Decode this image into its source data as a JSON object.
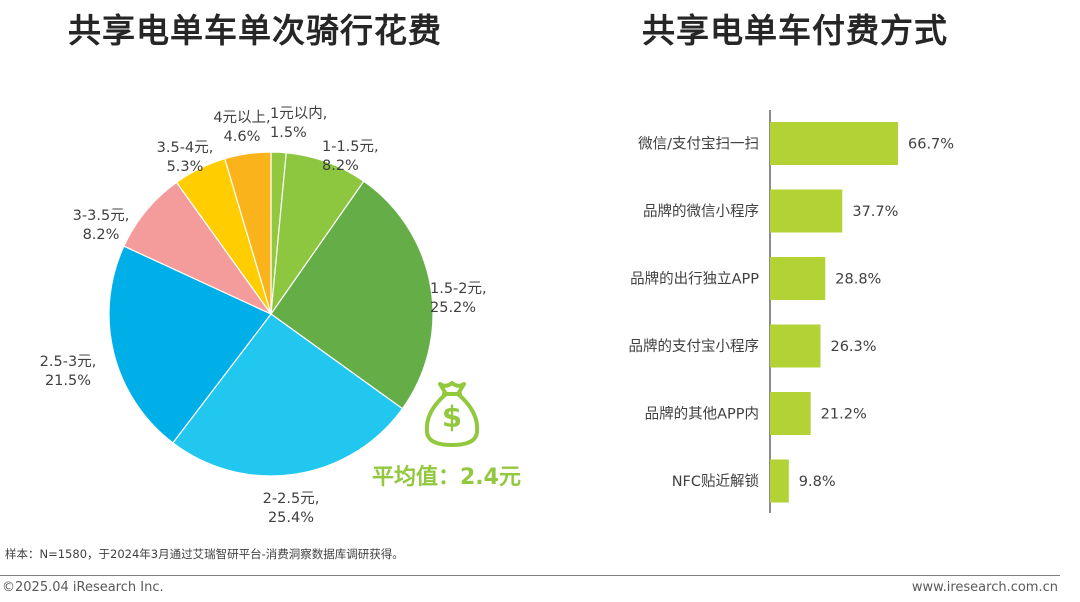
{
  "chart_data": [
    {
      "type": "pie",
      "title": "共享电单车单次骑行花费",
      "slices": [
        {
          "label": "1元以内",
          "value": 1.5,
          "display": "1.5%",
          "color": "#92c83e"
        },
        {
          "label": "1-1.5元",
          "value": 8.2,
          "display": "8.2%",
          "color": "#8dc63f"
        },
        {
          "label": "1.5-2元",
          "value": 25.2,
          "display": "25.2%",
          "color": "#65ae47"
        },
        {
          "label": "2-2.5元",
          "value": 25.4,
          "display": "25.4%",
          "color": "#22c7f0"
        },
        {
          "label": "2.5-3元",
          "value": 21.5,
          "display": "21.5%",
          "color": "#00aee8"
        },
        {
          "label": "3-3.5元",
          "value": 8.2,
          "display": "8.2%",
          "color": "#f49b9b"
        },
        {
          "label": "3.5-4元",
          "value": 5.3,
          "display": "5.3%",
          "color": "#ffcd00"
        },
        {
          "label": "4元以上",
          "value": 4.6,
          "display": "4.6%",
          "color": "#fbb31b"
        }
      ],
      "annotation": "平均值：2.4元"
    },
    {
      "type": "bar",
      "orientation": "horizontal",
      "title": "共享电单车付费方式",
      "categories": [
        "微信/支付宝扫一扫",
        "品牌的微信小程序",
        "品牌的出行独立APP",
        "品牌的支付宝小程序",
        "品牌的其他APP内",
        "NFC贴近解锁"
      ],
      "values": [
        66.7,
        37.7,
        28.8,
        26.3,
        21.2,
        9.8
      ],
      "value_labels": [
        "66.7%",
        "37.7%",
        "28.8%",
        "26.3%",
        "21.2%",
        "9.8%"
      ],
      "color": "#b2d235",
      "xlim": [
        0,
        100
      ]
    }
  ],
  "footnote": "样本：N=1580，于2024年3月通过艾瑞智研平台-消费洞察数据库调研获得。",
  "footer": {
    "copyright": "©2025.04 iResearch Inc.",
    "website": "www.iresearch.com.cn"
  },
  "icon": {
    "name": "money-bag-icon",
    "color": "#92c83e"
  }
}
